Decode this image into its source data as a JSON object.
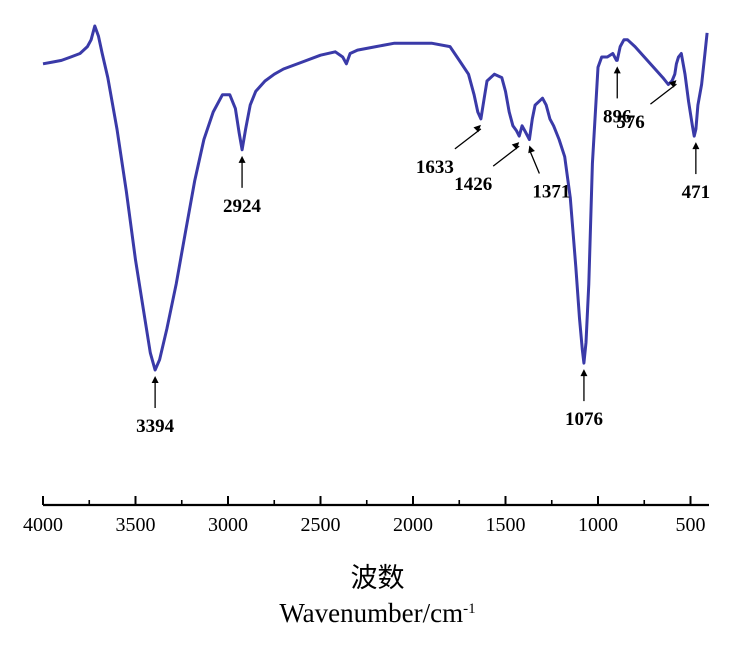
{
  "chart_data": {
    "type": "line",
    "xlabel_cn": "波数",
    "xlabel_en": "Wavenumber/cm",
    "xlabel_en_sup": "-1",
    "xlim": [
      4000,
      400
    ],
    "ylim": [
      0,
      100
    ],
    "x_reversed": true,
    "grid": false,
    "line_color": "#3a3aa8",
    "ticks": [
      "4000",
      "3500",
      "3000",
      "2500",
      "2000",
      "1500",
      "1000",
      "500"
    ],
    "tick_values": [
      4000,
      3500,
      3000,
      2500,
      2000,
      1500,
      1000,
      500
    ],
    "series": [
      {
        "x": [
          4000,
          3950,
          3900,
          3850,
          3800,
          3760,
          3740,
          3720,
          3700,
          3680,
          3650,
          3600,
          3550,
          3500,
          3450,
          3420,
          3394,
          3370,
          3330,
          3280,
          3230,
          3180,
          3130,
          3080,
          3030,
          2990,
          2960,
          2940,
          2924,
          2905,
          2880,
          2850,
          2800,
          2750,
          2700,
          2600,
          2500,
          2420,
          2380,
          2360,
          2340,
          2300,
          2200,
          2100,
          2000,
          1900,
          1800,
          1750,
          1700,
          1670,
          1650,
          1633,
          1615,
          1600,
          1560,
          1520,
          1500,
          1480,
          1460,
          1440,
          1426,
          1410,
          1390,
          1371,
          1355,
          1340,
          1320,
          1300,
          1280,
          1260,
          1240,
          1210,
          1180,
          1150,
          1120,
          1100,
          1085,
          1076,
          1065,
          1050,
          1030,
          1000,
          980,
          950,
          920,
          900,
          896,
          880,
          860,
          840,
          800,
          750,
          700,
          650,
          620,
          600,
          585,
          576,
          565,
          550,
          530,
          510,
          490,
          480,
          471,
          460,
          440,
          420,
          410
        ],
        "y": [
          89,
          89.5,
          90,
          91,
          92,
          94,
          96,
          100,
          97,
          92,
          85,
          70,
          52,
          32,
          15,
          5,
          0,
          3,
          12,
          25,
          40,
          55,
          67,
          75,
          80,
          80,
          76,
          69,
          64,
          70,
          77,
          81,
          84,
          86,
          87.5,
          89.5,
          91.5,
          92.5,
          91,
          89,
          92,
          93,
          94,
          95,
          95,
          95,
          94,
          90,
          86,
          80,
          75,
          73,
          79,
          84,
          86,
          85,
          81,
          75,
          71,
          69.5,
          68,
          71,
          69,
          67,
          73,
          77,
          78,
          79,
          77,
          73,
          71,
          67,
          62,
          50,
          30,
          15,
          6,
          2,
          8,
          25,
          60,
          88,
          91,
          91,
          92,
          90,
          90,
          94,
          96,
          96,
          94,
          91,
          88,
          85,
          83,
          84,
          86,
          89,
          91,
          92,
          86,
          78,
          71,
          68,
          70,
          77,
          83,
          93,
          98
        ]
      }
    ],
    "annotations": [
      {
        "label": "3394",
        "x": 3394,
        "y": 0,
        "dir": "below"
      },
      {
        "label": "2924",
        "x": 2924,
        "y": 64,
        "dir": "below"
      },
      {
        "label": "1633",
        "x": 1633,
        "y": 73,
        "dir": "below-left"
      },
      {
        "label": "1426",
        "x": 1426,
        "y": 68,
        "dir": "below-left"
      },
      {
        "label": "1371",
        "x": 1371,
        "y": 67,
        "dir": "below-right"
      },
      {
        "label": "1076",
        "x": 1076,
        "y": 2,
        "dir": "below"
      },
      {
        "label": "896",
        "x": 896,
        "y": 90,
        "dir": "below"
      },
      {
        "label": "576",
        "x": 576,
        "y": 86,
        "dir": "below-left"
      },
      {
        "label": "471",
        "x": 471,
        "y": 68,
        "dir": "below"
      }
    ]
  }
}
